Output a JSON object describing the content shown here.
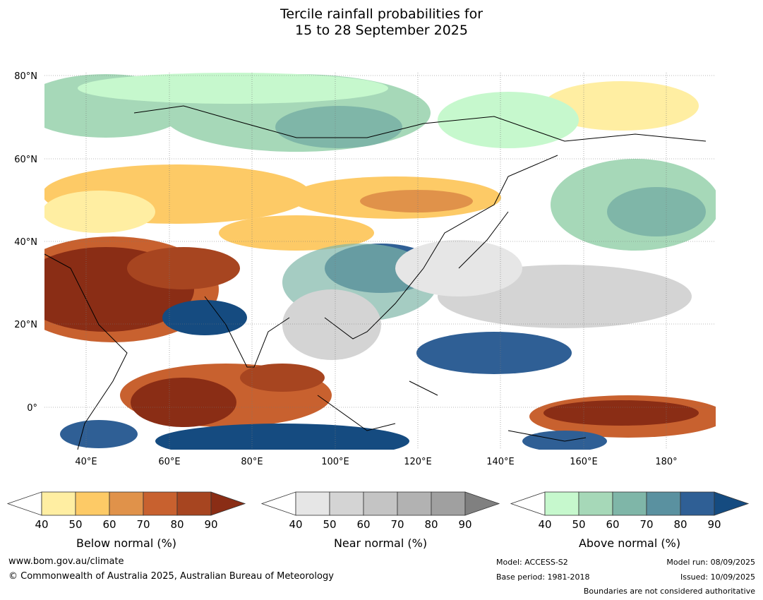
{
  "title": {
    "line1": "Tercile rainfall probabilities for",
    "line2": "15 to 28 September 2025"
  },
  "map": {
    "lat_labels": [
      "80°N",
      "60°N",
      "40°N",
      "20°N",
      "0°"
    ],
    "lon_labels": [
      "40°E",
      "60°E",
      "80°E",
      "100°E",
      "120°E",
      "140°E",
      "160°E",
      "180°"
    ],
    "legend": [
      {
        "label": "Below normal (%)",
        "ticks": [
          "40",
          "50",
          "60",
          "70",
          "80",
          "90"
        ],
        "colors": [
          "#ffeea2",
          "#fdca66",
          "#e0924a",
          "#c8612f",
          "#a74520",
          "#8a2d15"
        ]
      },
      {
        "label": "Near normal (%)",
        "ticks": [
          "40",
          "50",
          "60",
          "70",
          "80",
          "90"
        ],
        "colors": [
          "#e6e6e6",
          "#d4d4d4",
          "#c4c4c4",
          "#b2b2b2",
          "#a0a0a0",
          "#808080"
        ]
      },
      {
        "label": "Above normal (%)",
        "ticks": [
          "40",
          "50",
          "60",
          "70",
          "80",
          "90"
        ],
        "colors": [
          "#c6f8cd",
          "#a6d8b8",
          "#7fb6a8",
          "#5a91a0",
          "#2f5f95",
          "#154b80"
        ]
      }
    ]
  },
  "footer": {
    "website": "www.bom.gov.au/climate",
    "copyright": "© Commonwealth of Australia 2025, Australian Bureau of Meteorology",
    "model": "Model: ACCESS-S2",
    "base_period": "Base period: 1981-2018",
    "model_run": "Model run: 08/09/2025",
    "issued": "Issued: 10/09/2025",
    "disclaimer": "Boundaries are not considered authoritative"
  }
}
